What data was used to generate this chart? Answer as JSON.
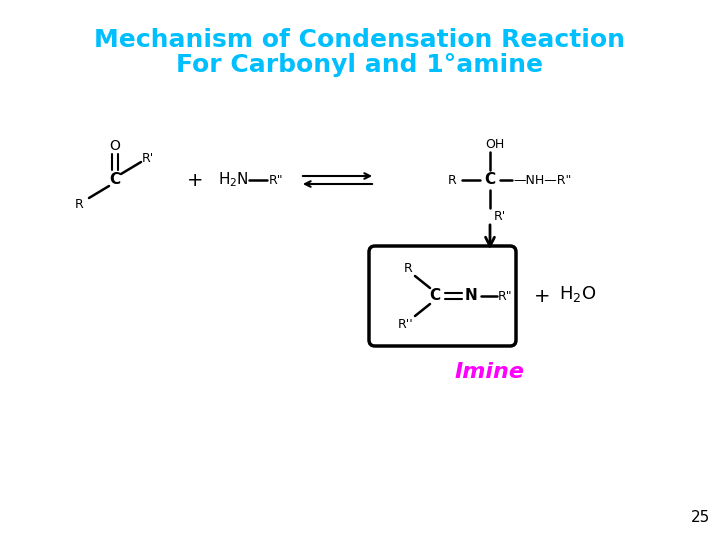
{
  "title_line1": "Mechanism of Condensation Reaction",
  "title_line2": "For Carbonyl and 1°amine",
  "title_color": "#00BFFF",
  "title_fontsize": 18,
  "imine_label": "Imine",
  "imine_color": "#FF00FF",
  "imine_fontsize": 16,
  "page_number": "25",
  "background_color": "#FFFFFF"
}
